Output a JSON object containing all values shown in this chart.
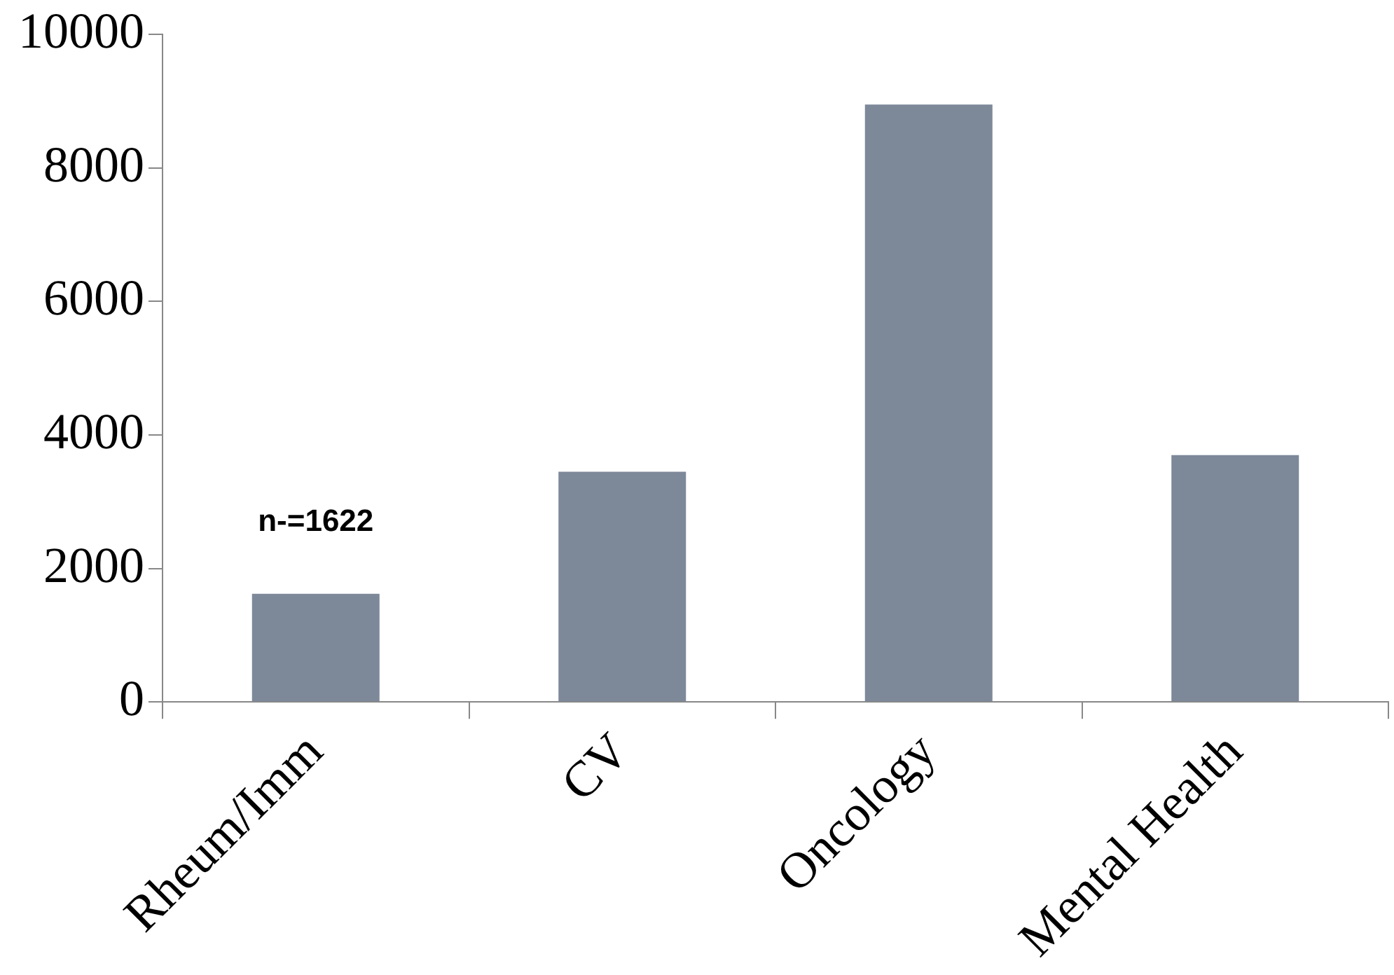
{
  "chart_data": {
    "type": "bar",
    "categories": [
      "Rheum/Imm",
      "CV",
      "Oncology",
      "Mental Health"
    ],
    "values": [
      1622,
      3450,
      8950,
      3700
    ],
    "value_labels": [
      "n-=1622",
      null,
      null,
      null
    ],
    "color": "#7d8899",
    "ylim": [
      0,
      10000
    ],
    "yticks": [
      0,
      2000,
      4000,
      6000,
      8000,
      10000
    ],
    "grid": false,
    "legend": false
  }
}
